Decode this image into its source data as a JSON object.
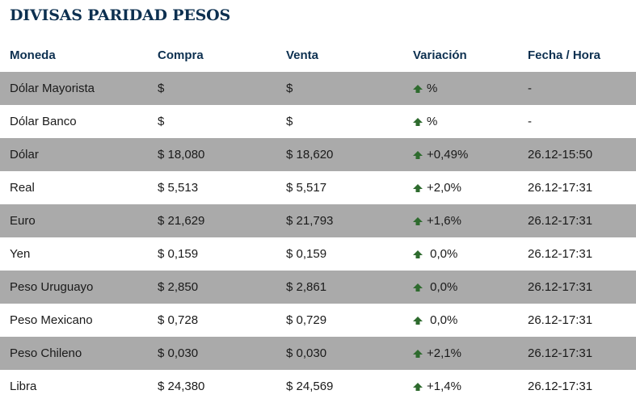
{
  "title": "DIVISAS PARIDAD PESOS",
  "colors": {
    "header_text": "#0d3050",
    "shaded_row": "#aaaaaa",
    "arrow_up": "#2e6b2e"
  },
  "columns": {
    "moneda": "Moneda",
    "compra": "Compra",
    "venta": "Venta",
    "variacion": "Variación",
    "fecha": "Fecha / Hora"
  },
  "rows": [
    {
      "moneda": "Dólar Mayorista",
      "compra": "$",
      "venta": "$",
      "variacion": "%",
      "fecha": "-",
      "icon": "arrow-up-icon"
    },
    {
      "moneda": "Dólar Banco",
      "compra": "$",
      "venta": "$",
      "variacion": "%",
      "fecha": "-",
      "icon": "arrow-up-icon"
    },
    {
      "moneda": "Dólar",
      "compra": "$ 18,080",
      "venta": "$ 18,620",
      "variacion": "+0,49%",
      "fecha": "26.12-15:50",
      "icon": "arrow-up-icon"
    },
    {
      "moneda": "Real",
      "compra": "$ 5,513",
      "venta": "$ 5,517",
      "variacion": "+2,0%",
      "fecha": "26.12-17:31",
      "icon": "arrow-up-icon"
    },
    {
      "moneda": "Euro",
      "compra": "$ 21,629",
      "venta": "$ 21,793",
      "variacion": "+1,6%",
      "fecha": "26.12-17:31",
      "icon": "arrow-up-icon"
    },
    {
      "moneda": "Yen",
      "compra": "$ 0,159",
      "venta": "$ 0,159",
      "variacion": " 0,0%",
      "fecha": "26.12-17:31",
      "icon": "arrow-up-icon"
    },
    {
      "moneda": "Peso Uruguayo",
      "compra": "$ 2,850",
      "venta": "$ 2,861",
      "variacion": " 0,0%",
      "fecha": "26.12-17:31",
      "icon": "arrow-up-icon"
    },
    {
      "moneda": "Peso Mexicano",
      "compra": "$ 0,728",
      "venta": "$ 0,729",
      "variacion": " 0,0%",
      "fecha": "26.12-17:31",
      "icon": "arrow-up-icon"
    },
    {
      "moneda": "Peso Chileno",
      "compra": "$ 0,030",
      "venta": "$ 0,030",
      "variacion": "+2,1%",
      "fecha": "26.12-17:31",
      "icon": "arrow-up-icon"
    },
    {
      "moneda": "Libra",
      "compra": "$ 24,380",
      "venta": "$ 24,569",
      "variacion": "+1,4%",
      "fecha": "26.12-17:31",
      "icon": "arrow-up-icon"
    }
  ]
}
